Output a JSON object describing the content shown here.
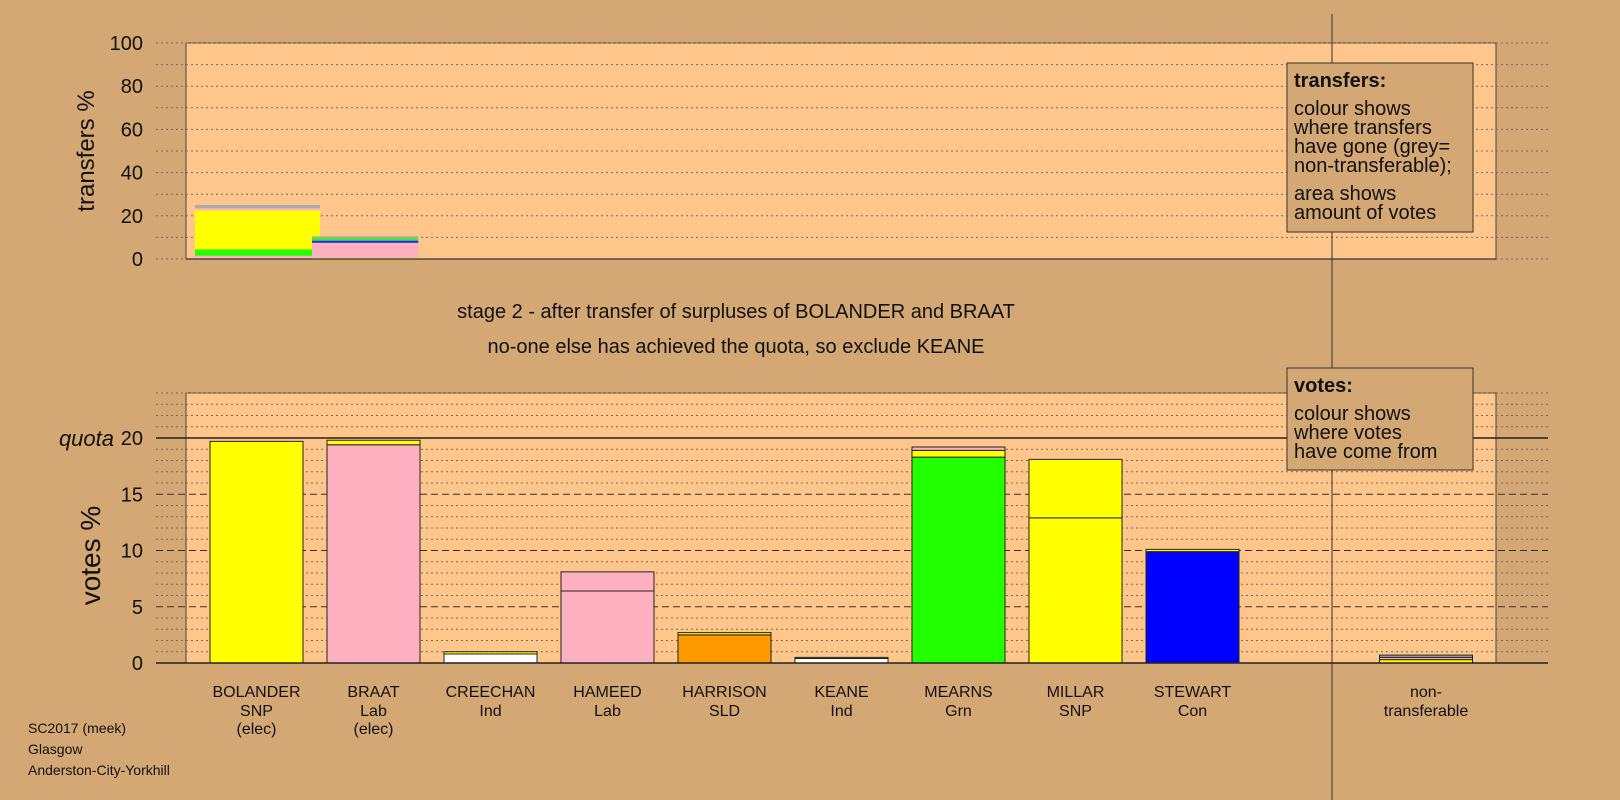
{
  "chart_data": [
    {
      "type": "bar",
      "name": "transfers",
      "ylabel": "transfers %",
      "ylim": [
        0,
        100
      ],
      "yticks": [
        0,
        20,
        40,
        60,
        80,
        100
      ],
      "legend": {
        "title": "transfers:",
        "lines1": [
          "colour shows",
          "where transfers",
          "have gone (grey=",
          "non-transferable);"
        ],
        "lines2": [
          "area shows",
          "amount of votes"
        ]
      },
      "columns": [
        {
          "from": "BOLANDER",
          "width_share": 1.0,
          "segments": [
            {
              "color": "#ffb0c0",
              "value": 1.5
            },
            {
              "color": "#22ff00",
              "value": 3.0
            },
            {
              "color": "#ffff00",
              "value": 18.0
            },
            {
              "color": "#ffb0c0",
              "value": 1.0
            },
            {
              "color": "#aaaaaa",
              "value": 1.5
            }
          ]
        },
        {
          "from": "BRAAT",
          "width_share": 0.85,
          "segments": [
            {
              "color": "#ffff00",
              "value": 0.5
            },
            {
              "color": "#ffb0c0",
              "value": 7.0
            },
            {
              "color": "#2222ff",
              "value": 1.0
            },
            {
              "color": "#22ff00",
              "value": 1.0
            },
            {
              "color": "#aaaaaa",
              "value": 1.0
            }
          ]
        }
      ]
    },
    {
      "type": "bar",
      "name": "votes",
      "ylabel": "votes %",
      "ylim": [
        0,
        24
      ],
      "yticks": [
        0,
        5,
        10,
        15,
        20
      ],
      "quota": 20,
      "quota_label": "quota",
      "legend": {
        "title": "votes:",
        "lines1": [
          "colour shows",
          "where votes",
          "have come from"
        ]
      },
      "candidates": [
        {
          "name": "BOLANDER",
          "party": "SNP",
          "status": "(elec)",
          "segments": [
            {
              "color": "#ffff00",
              "value": 19.7
            }
          ]
        },
        {
          "name": "BRAAT",
          "party": "Lab",
          "status": "(elec)",
          "segments": [
            {
              "color": "#ffb0c0",
              "value": 19.4
            },
            {
              "color": "#ffff00",
              "value": 0.4
            }
          ]
        },
        {
          "name": "CREECHAN",
          "party": "Ind",
          "status": "",
          "segments": [
            {
              "color": "#ffffff",
              "value": 0.8
            },
            {
              "color": "#ffff00",
              "value": 0.2
            }
          ]
        },
        {
          "name": "HAMEED",
          "party": "Lab",
          "status": "",
          "segments": [
            {
              "color": "#ffb0c0",
              "value": 6.4
            },
            {
              "color": "#ffb0c0",
              "value": 1.7
            }
          ]
        },
        {
          "name": "HARRISON",
          "party": "SLD",
          "status": "",
          "segments": [
            {
              "color": "#ff9900",
              "value": 2.5
            },
            {
              "color": "#ffff00",
              "value": 0.2
            }
          ]
        },
        {
          "name": "KEANE",
          "party": "Ind",
          "status": "",
          "segments": [
            {
              "color": "#ffffff",
              "value": 0.4
            },
            {
              "color": "#ffff00",
              "value": 0.1
            }
          ]
        },
        {
          "name": "MEARNS",
          "party": "Grn",
          "status": "",
          "segments": [
            {
              "color": "#22ff00",
              "value": 18.3
            },
            {
              "color": "#ffff00",
              "value": 0.6
            },
            {
              "color": "#ffb0c0",
              "value": 0.3
            }
          ]
        },
        {
          "name": "MILLAR",
          "party": "SNP",
          "status": "",
          "segments": [
            {
              "color": "#ffff00",
              "value": 12.9
            },
            {
              "color": "#ffff00",
              "value": 5.2
            }
          ]
        },
        {
          "name": "STEWART",
          "party": "Con",
          "status": "",
          "segments": [
            {
              "color": "#0000ff",
              "value": 9.9
            },
            {
              "color": "#ffff00",
              "value": 0.2
            }
          ]
        }
      ],
      "nontransferable": {
        "name": "non-",
        "party": "transferable",
        "segments": [
          {
            "color": "#ffff00",
            "value": 0.3
          },
          {
            "color": "#ffb0c0",
            "value": 0.2
          },
          {
            "color": "#aaaaaa",
            "value": 0.2
          }
        ]
      }
    }
  ],
  "stage_title": "stage 2 - after transfer of surpluses of BOLANDER and BRAAT",
  "stage_subtitle": "no-one else has achieved the quota, so exclude KEANE",
  "footer": {
    "line1": "SC2017 (meek)",
    "line2": "Glasgow",
    "line3": "Anderston-City-Yorkhill"
  }
}
